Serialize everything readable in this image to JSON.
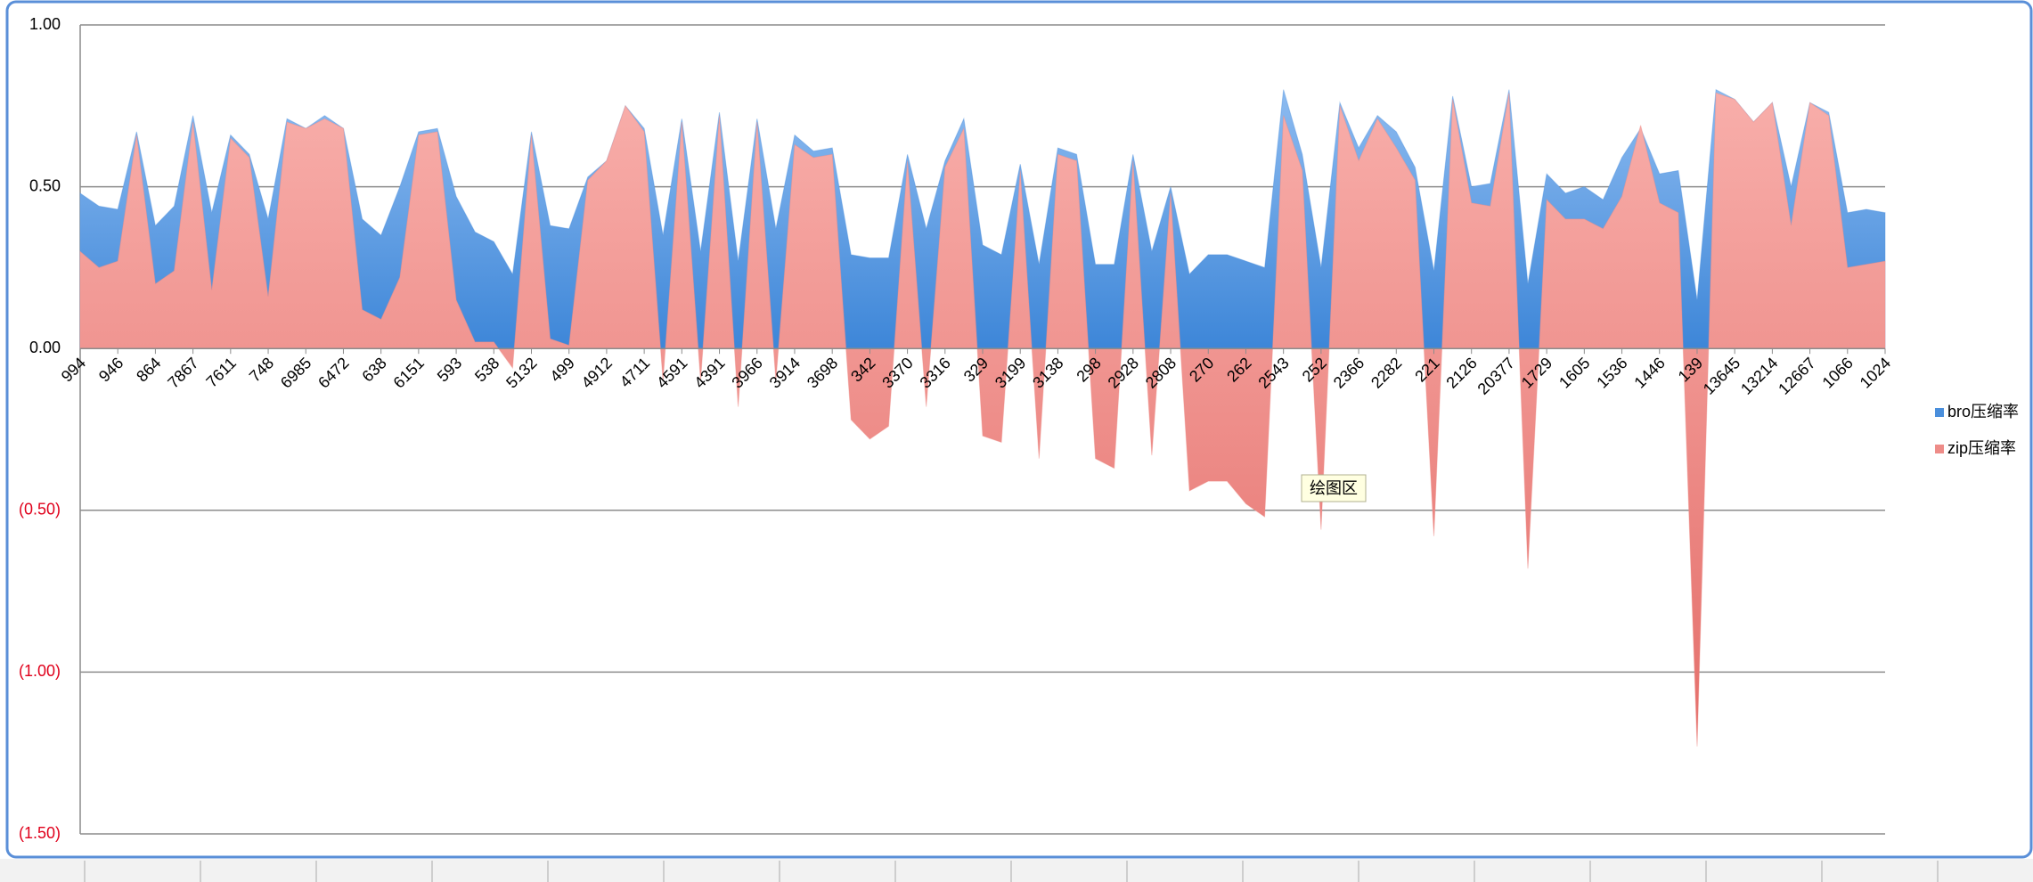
{
  "chart_data": {
    "type": "area",
    "categories": [
      "994",
      null,
      "946",
      null,
      "864",
      null,
      "7867",
      null,
      "7611",
      null,
      "748",
      null,
      "6985",
      null,
      "6472",
      null,
      "638",
      null,
      "6151",
      null,
      "593",
      null,
      "538",
      null,
      "5132",
      null,
      "499",
      null,
      "4912",
      null,
      "4711",
      null,
      "4591",
      null,
      "4391",
      null,
      "3966",
      null,
      "3914",
      null,
      "3698",
      null,
      "342",
      null,
      "3370",
      null,
      "3316",
      null,
      "329",
      null,
      "3199",
      null,
      "3138",
      null,
      "298",
      null,
      "2928",
      null,
      "2808",
      null,
      "270",
      null,
      "262",
      null,
      "2543",
      null,
      "252",
      null,
      "2366",
      null,
      "2282",
      null,
      "221",
      null,
      "2126",
      null,
      "20377",
      null,
      "1729",
      null,
      "1605",
      null,
      "1536",
      null,
      "1446",
      null,
      "139",
      null,
      "13645",
      null,
      "13214",
      null,
      "12667",
      null,
      "1066",
      null,
      "1024"
    ],
    "series": [
      {
        "name": "bro压缩率",
        "color": "#4a8fdc",
        "values": [
          0.48,
          0.44,
          0.43,
          0.67,
          0.38,
          0.44,
          0.72,
          0.42,
          0.66,
          0.6,
          0.4,
          0.71,
          0.68,
          0.72,
          0.68,
          0.4,
          0.35,
          0.5,
          0.67,
          0.68,
          0.47,
          0.36,
          0.33,
          0.23,
          0.67,
          0.38,
          0.37,
          0.53,
          0.58,
          0.75,
          0.68,
          0.35,
          0.71,
          0.3,
          0.73,
          0.27,
          0.71,
          0.37,
          0.66,
          0.61,
          0.62,
          0.29,
          0.28,
          0.28,
          0.6,
          0.37,
          0.58,
          0.71,
          0.32,
          0.29,
          0.57,
          0.26,
          0.62,
          0.6,
          0.26,
          0.26,
          0.6,
          0.3,
          0.5,
          0.23,
          0.29,
          0.29,
          0.27,
          0.25,
          0.8,
          0.6,
          0.25,
          0.76,
          0.62,
          0.72,
          0.67,
          0.56,
          0.24,
          0.78,
          0.5,
          0.51,
          0.8,
          0.2,
          0.54,
          0.48,
          0.5,
          0.46,
          0.59,
          0.68,
          0.54,
          0.55,
          0.15,
          0.8,
          0.77,
          0.7,
          0.76,
          0.5,
          0.76,
          0.73,
          0.42,
          0.43,
          0.42
        ]
      },
      {
        "name": "zip压缩率",
        "color": "#ee8c88",
        "values": [
          0.3,
          0.25,
          0.27,
          0.66,
          0.2,
          0.24,
          0.7,
          0.18,
          0.65,
          0.59,
          0.16,
          0.7,
          0.68,
          0.71,
          0.68,
          0.12,
          0.09,
          0.22,
          0.66,
          0.67,
          0.15,
          0.02,
          0.02,
          -0.06,
          0.66,
          0.03,
          0.01,
          0.52,
          0.58,
          0.75,
          0.67,
          -0.1,
          0.7,
          -0.1,
          0.72,
          -0.18,
          0.7,
          -0.1,
          0.63,
          0.59,
          0.6,
          -0.22,
          -0.28,
          -0.24,
          0.58,
          -0.18,
          0.56,
          0.68,
          -0.27,
          -0.29,
          0.55,
          -0.34,
          0.6,
          0.58,
          -0.34,
          -0.37,
          0.58,
          -0.33,
          0.48,
          -0.44,
          -0.41,
          -0.41,
          -0.48,
          -0.52,
          0.72,
          0.55,
          -0.56,
          0.75,
          0.58,
          0.71,
          0.62,
          0.52,
          -0.58,
          0.77,
          0.45,
          0.44,
          0.79,
          -0.68,
          0.46,
          0.4,
          0.4,
          0.37,
          0.47,
          0.69,
          0.45,
          0.42,
          -1.23,
          0.79,
          0.77,
          0.7,
          0.76,
          0.38,
          0.76,
          0.72,
          0.25,
          0.26,
          0.27
        ]
      }
    ],
    "ylim": [
      -1.5,
      1.0
    ],
    "yticks": [
      {
        "value": 1.0,
        "label": "1.00"
      },
      {
        "value": 0.5,
        "label": "0.50"
      },
      {
        "value": 0,
        "label": "0.00"
      },
      {
        "value": -0.5,
        "label": "(0.50)"
      },
      {
        "value": -1.0,
        "label": "(1.00)"
      },
      {
        "value": -1.5,
        "label": "(1.50)"
      }
    ],
    "negative_tick_color": "#e0001b",
    "grid": true,
    "legend": "right",
    "tooltip": "绘图区"
  }
}
